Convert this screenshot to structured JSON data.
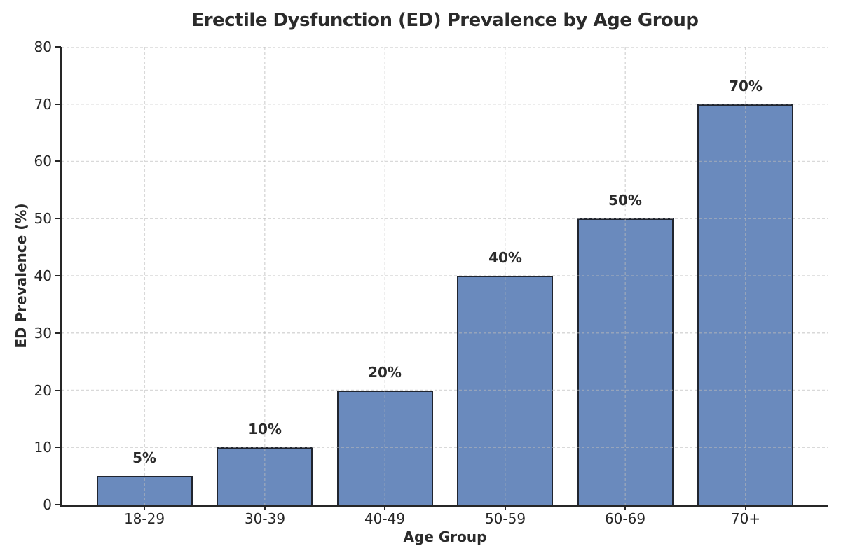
{
  "chart_data": {
    "type": "bar",
    "title": "Erectile Dysfunction (ED) Prevalence by Age Group",
    "xlabel": "Age Group",
    "ylabel": "ED Prevalence (%)",
    "categories": [
      "18-29",
      "30-39",
      "40-49",
      "50-59",
      "60-69",
      "70+"
    ],
    "values": [
      5,
      10,
      20,
      40,
      50,
      70
    ],
    "bar_labels": [
      "5%",
      "10%",
      "20%",
      "40%",
      "50%",
      "70%"
    ],
    "ylim": [
      0,
      80
    ],
    "yticks": [
      0,
      10,
      20,
      30,
      40,
      50,
      60,
      70,
      80
    ],
    "legend": "none",
    "grid": "dashed lines on both axes, drawn above bars",
    "colors": {
      "bar_fill": "#6a8abd",
      "bar_edge": "#20252f",
      "grid_line": "rgba(186,186,186,0.55)",
      "axis_and_text": "#262626",
      "background": "#ffffff"
    }
  }
}
